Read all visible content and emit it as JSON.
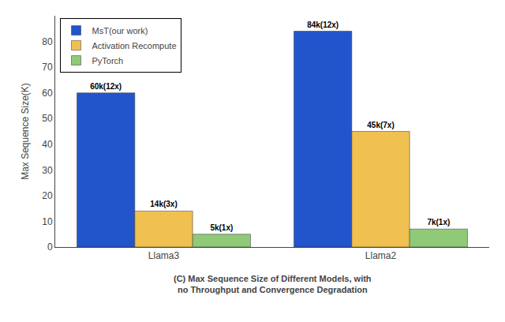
{
  "chart_data": {
    "type": "bar",
    "title": "(C) Max Sequence Size of Different Models, with\nno Throughput and Convergence Degradation",
    "categories": [
      "Llama3",
      "Llama2"
    ],
    "series": [
      {
        "name": "MsT(our work)",
        "color": "#2255CC",
        "values": [
          60,
          84
        ],
        "value_labels": [
          "60k(12x)",
          "84k(12x)"
        ]
      },
      {
        "name": "Activation Recompute",
        "color": "#F0C050",
        "values": [
          14,
          45
        ],
        "value_labels": [
          "14k(3x)",
          "45k(7x)"
        ]
      },
      {
        "name": "PyTorch",
        "color": "#90C978",
        "values": [
          5,
          7
        ],
        "value_labels": [
          "5k(1x)",
          "7k(1x)"
        ]
      }
    ],
    "ylabel": "Max Sequence Size(K)",
    "ylim": [
      0,
      90
    ],
    "yticks": [
      0,
      10,
      20,
      30,
      40,
      50,
      60,
      70,
      80
    ],
    "data_labels": true,
    "legend": "upper left",
    "grid": false
  }
}
